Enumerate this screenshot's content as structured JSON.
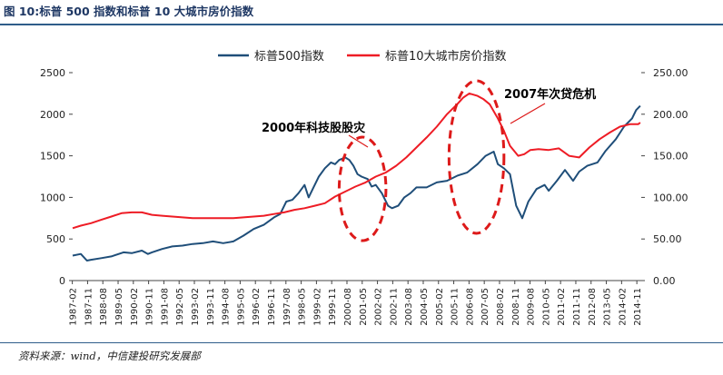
{
  "header": {
    "title": "图 10:标普 500 指数和标普 10 大城市房价指数"
  },
  "footer": {
    "source": "资料来源：wind，中信建投研究发展部"
  },
  "chart_data": {
    "type": "line",
    "legend_position": "top-center",
    "grid": false,
    "x_ticks": [
      "1987-02",
      "1987-11",
      "1988-08",
      "1989-05",
      "1990-02",
      "1990-11",
      "1991-08",
      "1992-05",
      "1993-02",
      "1993-11",
      "1994-08",
      "1995-05",
      "1996-02",
      "1996-11",
      "1997-08",
      "1998-05",
      "1999-02",
      "1999-11",
      "2000-08",
      "2001-05",
      "2002-02",
      "2002-11",
      "2003-08",
      "2004-05",
      "2005-02",
      "2005-11",
      "2006-08",
      "2007-05",
      "2008-02",
      "2008-11",
      "2009-08",
      "2010-05",
      "2011-02",
      "2011-11",
      "2012-08",
      "2013-05",
      "2014-02",
      "2014-11"
    ],
    "y_left": {
      "ticks": [
        "0",
        "500",
        "1000",
        "1500",
        "2000",
        "2500"
      ],
      "range": [
        0,
        2500
      ]
    },
    "y_right": {
      "ticks": [
        "0.00",
        "50.00",
        "100.00",
        "150.00",
        "200.00",
        "250.00"
      ],
      "range": [
        0,
        250
      ]
    },
    "series": [
      {
        "name": "标普500指数",
        "axis": "left",
        "color": "#1f4e79",
        "x": [
          1987.1,
          1987.5,
          1987.8,
          1988.0,
          1988.5,
          1989.0,
          1989.6,
          1990.0,
          1990.5,
          1990.8,
          1991.0,
          1991.5,
          1992.0,
          1992.5,
          1993.0,
          1993.5,
          1994.0,
          1994.5,
          1995.0,
          1995.5,
          1996.0,
          1996.5,
          1997.0,
          1997.3,
          1997.6,
          1997.9,
          1998.2,
          1998.5,
          1998.7,
          1998.9,
          1999.2,
          1999.5,
          1999.8,
          2000.0,
          2000.2,
          2000.5,
          2000.7,
          2000.9,
          2001.1,
          2001.3,
          2001.6,
          2001.8,
          2002.0,
          2002.3,
          2002.6,
          2002.8,
          2003.1,
          2003.4,
          2003.7,
          2004.0,
          2004.5,
          2005.0,
          2005.5,
          2006.0,
          2006.5,
          2007.0,
          2007.4,
          2007.8,
          2008.0,
          2008.3,
          2008.6,
          2008.9,
          2009.2,
          2009.5,
          2009.9,
          2010.3,
          2010.5,
          2010.9,
          2011.3,
          2011.7,
          2012.0,
          2012.4,
          2012.9,
          2013.3,
          2013.8,
          2014.2,
          2014.6,
          2014.8,
          2015.0
        ],
        "y": [
          300,
          320,
          240,
          250,
          270,
          290,
          340,
          330,
          360,
          320,
          340,
          380,
          410,
          420,
          440,
          450,
          470,
          450,
          470,
          540,
          620,
          670,
          760,
          800,
          950,
          970,
          1050,
          1150,
          1000,
          1100,
          1250,
          1350,
          1420,
          1400,
          1450,
          1480,
          1450,
          1380,
          1280,
          1250,
          1220,
          1130,
          1150,
          1050,
          900,
          870,
          900,
          1000,
          1050,
          1120,
          1120,
          1180,
          1200,
          1260,
          1300,
          1400,
          1500,
          1550,
          1400,
          1350,
          1280,
          900,
          750,
          950,
          1100,
          1150,
          1080,
          1200,
          1330,
          1200,
          1310,
          1380,
          1420,
          1560,
          1700,
          1850,
          1950,
          2050,
          2100
        ]
      },
      {
        "name": "标普10大城市房价指数",
        "axis": "right",
        "color": "#ee1c25",
        "x": [
          1987.1,
          1987.5,
          1988.0,
          1988.5,
          1989.0,
          1989.5,
          1990.0,
          1990.5,
          1991.0,
          1991.5,
          1992.0,
          1992.5,
          1993.0,
          1993.5,
          1994.0,
          1994.5,
          1995.0,
          1995.5,
          1996.0,
          1996.5,
          1997.0,
          1997.5,
          1998.0,
          1998.5,
          1999.0,
          1999.5,
          2000.0,
          2000.5,
          2001.0,
          2001.5,
          2002.0,
          2002.5,
          2003.0,
          2003.5,
          2004.0,
          2004.5,
          2005.0,
          2005.5,
          2006.0,
          2006.3,
          2006.6,
          2007.0,
          2007.3,
          2007.6,
          2008.0,
          2008.3,
          2008.6,
          2009.0,
          2009.3,
          2009.6,
          2010.0,
          2010.5,
          2011.0,
          2011.5,
          2012.0,
          2012.5,
          2013.0,
          2013.5,
          2014.0,
          2014.5,
          2014.9,
          2015.0
        ],
        "y": [
          63,
          66,
          69,
          73,
          77,
          81,
          82,
          82,
          79,
          78,
          77,
          76,
          75,
          75,
          75,
          75,
          75,
          76,
          77,
          78,
          80,
          82,
          85,
          87,
          90,
          93,
          101,
          107,
          113,
          118,
          125,
          130,
          138,
          148,
          160,
          172,
          185,
          200,
          212,
          220,
          225,
          222,
          218,
          212,
          195,
          180,
          162,
          150,
          152,
          157,
          158,
          157,
          159,
          150,
          148,
          160,
          170,
          178,
          185,
          188,
          188,
          190
        ]
      }
    ],
    "annotations": [
      {
        "text": "2000年科技股股灾",
        "circle_x_range": [
          2000.2,
          2002.5
        ]
      },
      {
        "text": "2007年次贷危机",
        "circle_x_range": [
          2005.6,
          2008.3
        ]
      }
    ]
  }
}
